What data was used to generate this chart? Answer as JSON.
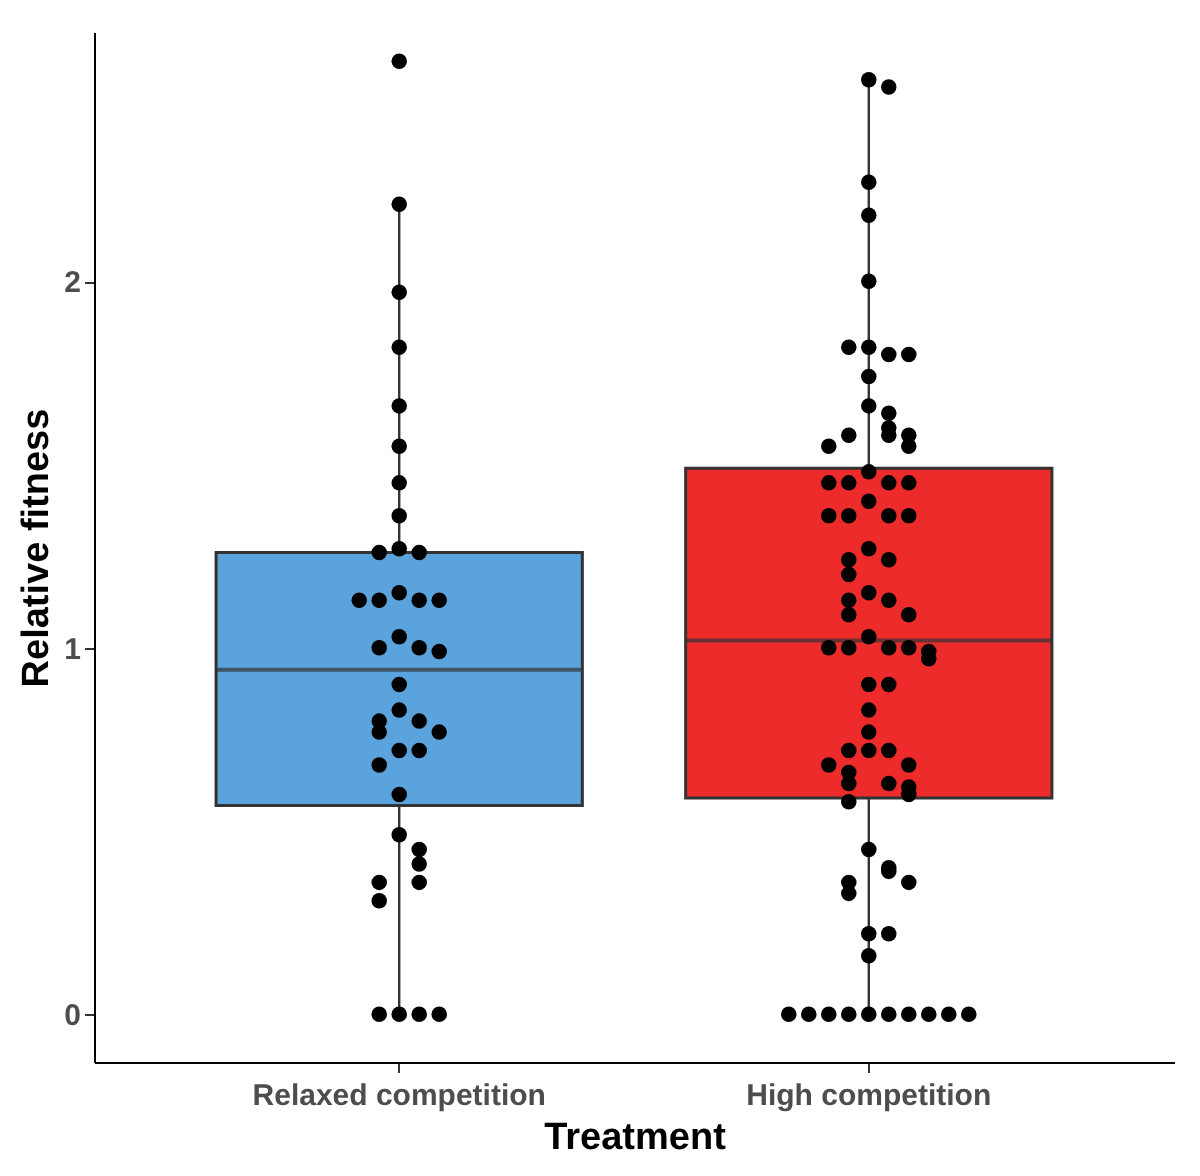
{
  "chart_data": {
    "type": "box",
    "xlabel": "Treatment",
    "ylabel": "Relative fitness",
    "categories": [
      "Relaxed competition",
      "High competition"
    ],
    "colors": [
      "#5ba3dc",
      "#ee2b2b"
    ],
    "boxes": [
      {
        "low": 0,
        "q1": 0.57,
        "median": 0.94,
        "q3": 1.26,
        "high": 2.21
      },
      {
        "low": 0,
        "q1": 0.59,
        "median": 1.02,
        "q3": 1.49,
        "high": 2.55
      }
    ],
    "ylim": [
      -0.13,
      2.68
    ],
    "yticks": [
      {
        "value": 0,
        "label": "0"
      },
      {
        "value": 1,
        "label": "1"
      },
      {
        "value": 2,
        "label": "2"
      }
    ],
    "marker": "circle",
    "series": [
      {
        "type": "scatter",
        "color": "#000000",
        "x": [
          "Relaxed competition",
          "Relaxed competition",
          "Relaxed competition",
          "Relaxed competition",
          "Relaxed competition",
          "Relaxed competition",
          "Relaxed competition",
          "Relaxed competition",
          "Relaxed competition",
          "Relaxed competition",
          "Relaxed competition",
          "Relaxed competition",
          "Relaxed competition",
          "Relaxed competition",
          "Relaxed competition",
          "Relaxed competition",
          "Relaxed competition",
          "Relaxed competition",
          "Relaxed competition",
          "Relaxed competition",
          "Relaxed competition",
          "Relaxed competition",
          "Relaxed competition",
          "Relaxed competition",
          "Relaxed competition",
          "Relaxed competition",
          "Relaxed competition",
          "Relaxed competition",
          "Relaxed competition",
          "Relaxed competition",
          "Relaxed competition",
          "Relaxed competition",
          "Relaxed competition",
          "Relaxed competition",
          "Relaxed competition",
          "Relaxed competition",
          "Relaxed competition",
          "Relaxed competition",
          "Relaxed competition",
          "Relaxed competition"
        ],
        "values": [
          2.6,
          2.21,
          1.97,
          1.82,
          1.66,
          1.55,
          1.45,
          1.36,
          1.27,
          1.26,
          1.26,
          1.15,
          1.13,
          1.13,
          1.13,
          1.13,
          1.03,
          1.0,
          1.0,
          0.99,
          0.9,
          0.83,
          0.8,
          0.8,
          0.77,
          0.77,
          0.72,
          0.72,
          0.68,
          0.6,
          0.49,
          0.45,
          0.41,
          0.36,
          0.36,
          0.31,
          0,
          0,
          0,
          0
        ]
      },
      {
        "type": "scatter",
        "color": "#000000",
        "x": [
          "High competition",
          "High competition",
          "High competition",
          "High competition",
          "High competition",
          "High competition",
          "High competition",
          "High competition",
          "High competition",
          "High competition",
          "High competition",
          "High competition",
          "High competition",
          "High competition",
          "High competition",
          "High competition",
          "High competition",
          "High competition",
          "High competition",
          "High competition",
          "High competition",
          "High competition",
          "High competition",
          "High competition",
          "High competition",
          "High competition",
          "High competition",
          "High competition",
          "High competition",
          "High competition",
          "High competition",
          "High competition",
          "High competition",
          "High competition",
          "High competition",
          "High competition",
          "High competition",
          "High competition",
          "High competition",
          "High competition",
          "High competition",
          "High competition",
          "High competition",
          "High competition",
          "High competition",
          "High competition",
          "High competition",
          "High competition",
          "High competition",
          "High competition",
          "High competition",
          "High competition",
          "High competition",
          "High competition",
          "High competition",
          "High competition",
          "High competition",
          "High competition",
          "High competition",
          "High competition",
          "High competition",
          "High competition",
          "High competition",
          "High competition",
          "High competition",
          "High competition",
          "High competition",
          "High competition",
          "High competition",
          "High competition",
          "High competition",
          "High competition",
          "High competition",
          "High competition",
          "High competition",
          "High competition",
          "High competition",
          "High competition"
        ],
        "values": [
          2.55,
          2.53,
          2.27,
          2.18,
          2.0,
          1.82,
          1.8,
          1.82,
          1.8,
          1.74,
          1.66,
          1.64,
          1.6,
          1.58,
          1.58,
          1.58,
          1.55,
          1.55,
          1.48,
          1.45,
          1.45,
          1.45,
          1.45,
          1.4,
          1.36,
          1.36,
          1.36,
          1.36,
          1.27,
          1.24,
          1.24,
          1.2,
          1.15,
          1.13,
          1.13,
          1.09,
          1.09,
          1.03,
          1.0,
          1.0,
          1.0,
          1.0,
          0.99,
          0.97,
          0.9,
          0.9,
          0.83,
          0.77,
          0.72,
          0.72,
          0.72,
          0.68,
          0.68,
          0.66,
          0.63,
          0.63,
          0.62,
          0.6,
          0.58,
          0.45,
          0.4,
          0.39,
          0.36,
          0.36,
          0.33,
          0.22,
          0.22,
          0.16,
          0,
          0,
          0,
          0,
          0,
          0,
          0,
          0,
          0,
          0
        ]
      }
    ]
  }
}
